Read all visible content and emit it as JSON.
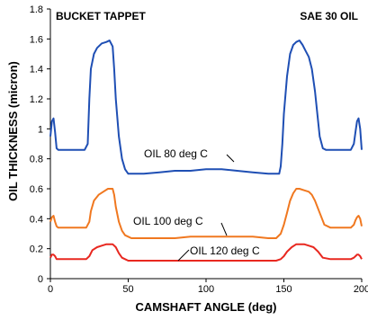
{
  "chart_data": {
    "type": "line",
    "title_left": "BUCKET TAPPET",
    "title_right": "SAE 30 OIL",
    "xlabel": "CAMSHAFT ANGLE (deg)",
    "ylabel": "OIL THICKNESS (micron)",
    "xlim": [
      0,
      200
    ],
    "ylim": [
      0,
      1.8
    ],
    "xticks": [
      "0",
      "50",
      "100",
      "150",
      "200"
    ],
    "xtick_values": [
      0,
      50,
      100,
      150,
      200
    ],
    "yticks": [
      "0",
      "0.2",
      "0.4",
      "0.6",
      "0.8",
      "1",
      "1.2",
      "1.4",
      "1.6",
      "1.8"
    ],
    "ytick_values": [
      0,
      0.2,
      0.4,
      0.6,
      0.8,
      1.0,
      1.2,
      1.4,
      1.6,
      1.8
    ],
    "grid": false,
    "series": [
      {
        "name": "OIL 80 deg C",
        "color": "#1f4fb4",
        "x": [
          0,
          1,
          2,
          3,
          4,
          5,
          8,
          12,
          15,
          18,
          20,
          22,
          24,
          25,
          26,
          28,
          30,
          33,
          36,
          38,
          40,
          41,
          42,
          44,
          46,
          48,
          50,
          52,
          55,
          60,
          70,
          80,
          90,
          100,
          110,
          120,
          130,
          140,
          147,
          148,
          149,
          150,
          152,
          154,
          156,
          158,
          160,
          162,
          164,
          166,
          168,
          170,
          173,
          175,
          177,
          180,
          182,
          185,
          190,
          193,
          195,
          196,
          197,
          198,
          199,
          200
        ],
        "y": [
          0.95,
          1.05,
          1.07,
          0.98,
          0.87,
          0.86,
          0.86,
          0.86,
          0.86,
          0.86,
          0.86,
          0.86,
          0.9,
          1.2,
          1.4,
          1.5,
          1.54,
          1.57,
          1.58,
          1.59,
          1.55,
          1.4,
          1.2,
          0.95,
          0.8,
          0.73,
          0.7,
          0.7,
          0.7,
          0.7,
          0.71,
          0.72,
          0.72,
          0.73,
          0.73,
          0.72,
          0.71,
          0.7,
          0.7,
          0.75,
          0.9,
          1.1,
          1.35,
          1.5,
          1.56,
          1.58,
          1.59,
          1.56,
          1.52,
          1.48,
          1.4,
          1.25,
          0.95,
          0.87,
          0.86,
          0.86,
          0.86,
          0.86,
          0.86,
          0.86,
          0.9,
          0.98,
          1.05,
          1.07,
          1.0,
          0.86
        ],
        "label": "OIL 80 deg C"
      },
      {
        "name": "OIL 100 deg C",
        "color": "#f07820",
        "x": [
          0,
          1,
          2,
          3,
          4,
          5,
          8,
          12,
          16,
          20,
          23,
          25,
          26,
          28,
          31,
          34,
          37,
          40,
          41,
          42,
          44,
          46,
          48,
          50,
          52,
          55,
          60,
          70,
          80,
          90,
          100,
          110,
          120,
          130,
          140,
          145,
          148,
          150,
          152,
          154,
          156,
          158,
          160,
          163,
          166,
          168,
          170,
          173,
          176,
          180,
          185,
          190,
          193,
          195,
          196,
          197,
          198,
          199,
          200
        ],
        "y": [
          0.38,
          0.41,
          0.42,
          0.38,
          0.35,
          0.34,
          0.34,
          0.34,
          0.34,
          0.34,
          0.34,
          0.38,
          0.45,
          0.52,
          0.56,
          0.58,
          0.6,
          0.6,
          0.56,
          0.48,
          0.38,
          0.32,
          0.29,
          0.28,
          0.27,
          0.27,
          0.27,
          0.27,
          0.27,
          0.28,
          0.28,
          0.28,
          0.28,
          0.28,
          0.27,
          0.27,
          0.3,
          0.36,
          0.44,
          0.52,
          0.57,
          0.6,
          0.6,
          0.59,
          0.58,
          0.56,
          0.52,
          0.44,
          0.36,
          0.34,
          0.34,
          0.34,
          0.34,
          0.36,
          0.39,
          0.41,
          0.42,
          0.4,
          0.35
        ],
        "label": "OIL 100 deg C"
      },
      {
        "name": "OIL 120 deg C",
        "color": "#e82820",
        "x": [
          0,
          1,
          2,
          3,
          4,
          5,
          8,
          12,
          16,
          20,
          23,
          25,
          27,
          30,
          33,
          36,
          40,
          42,
          44,
          46,
          48,
          50,
          55,
          60,
          70,
          80,
          90,
          100,
          110,
          120,
          130,
          140,
          145,
          148,
          150,
          152,
          155,
          158,
          160,
          163,
          166,
          169,
          172,
          175,
          180,
          185,
          190,
          193,
          195,
          196,
          197,
          198,
          199,
          200
        ],
        "y": [
          0.14,
          0.16,
          0.16,
          0.15,
          0.13,
          0.13,
          0.13,
          0.13,
          0.13,
          0.13,
          0.13,
          0.15,
          0.19,
          0.21,
          0.22,
          0.23,
          0.23,
          0.21,
          0.17,
          0.14,
          0.13,
          0.12,
          0.12,
          0.12,
          0.12,
          0.12,
          0.12,
          0.12,
          0.12,
          0.12,
          0.12,
          0.12,
          0.12,
          0.13,
          0.15,
          0.18,
          0.21,
          0.23,
          0.23,
          0.23,
          0.22,
          0.21,
          0.18,
          0.14,
          0.13,
          0.13,
          0.13,
          0.13,
          0.14,
          0.15,
          0.16,
          0.16,
          0.15,
          0.13
        ],
        "label": "OIL 120 deg C"
      }
    ]
  }
}
